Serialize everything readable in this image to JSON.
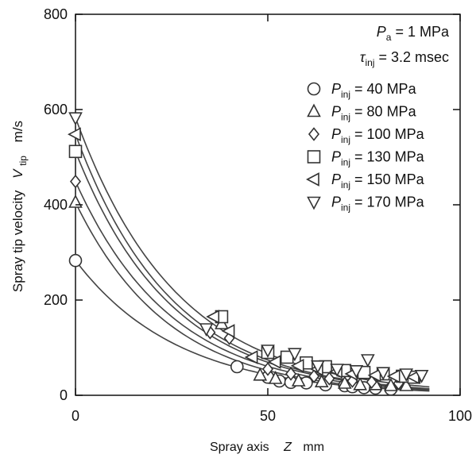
{
  "chart_data": {
    "type": "scatter",
    "title": "",
    "xlabel": {
      "text": "Spray axis",
      "var": "Z",
      "unit": "mm"
    },
    "ylabel": {
      "text": "Spray tip velocity",
      "var": "V",
      "sub": "tip",
      "unit": "m/s"
    },
    "xlim": [
      0,
      100
    ],
    "ylim": [
      0,
      800
    ],
    "xticks": [
      0,
      50,
      100
    ],
    "yticks": [
      0,
      200,
      400,
      600,
      800
    ],
    "grid": false,
    "conditions": [
      {
        "var": "P",
        "sub": "a",
        "value": "= 1 MPa"
      },
      {
        "var": "τ",
        "sub": "inj",
        "value": "= 3.2 msec"
      }
    ],
    "legend_position": "right",
    "series": [
      {
        "name": "40 MPa",
        "var": "P",
        "sub": "inj",
        "marker": "circle",
        "points": [
          [
            0,
            283
          ],
          [
            42,
            60
          ],
          [
            50,
            38
          ],
          [
            53,
            30
          ],
          [
            56,
            27
          ],
          [
            60,
            26
          ],
          [
            65,
            22
          ],
          [
            70,
            20
          ],
          [
            72,
            18
          ],
          [
            75,
            16
          ],
          [
            78,
            15
          ],
          [
            82,
            13
          ]
        ],
        "fit": {
          "a": 283,
          "b": 0.0375,
          "c": 0
        }
      },
      {
        "name": "80 MPa",
        "var": "P",
        "sub": "inj",
        "marker": "triangle-up",
        "points": [
          [
            0,
            405
          ],
          [
            38,
            150
          ],
          [
            48,
            42
          ],
          [
            52,
            35
          ],
          [
            58,
            30
          ],
          [
            64,
            28
          ],
          [
            70,
            25
          ],
          [
            74,
            22
          ],
          [
            78,
            22
          ],
          [
            82,
            20
          ],
          [
            86,
            20
          ]
        ],
        "fit": {
          "a": 405,
          "b": 0.041,
          "c": 0
        }
      },
      {
        "name": "100 MPa",
        "var": "P",
        "sub": "inj",
        "marker": "diamond",
        "points": [
          [
            0,
            449
          ],
          [
            35,
            132
          ],
          [
            40,
            120
          ],
          [
            50,
            55
          ],
          [
            56,
            45
          ],
          [
            62,
            40
          ],
          [
            66,
            35
          ],
          [
            72,
            30
          ],
          [
            77,
            28
          ],
          [
            84,
            25
          ]
        ],
        "fit": {
          "a": 449,
          "b": 0.04,
          "c": 0
        }
      },
      {
        "name": "130 MPa",
        "var": "P",
        "sub": "inj",
        "marker": "square",
        "points": [
          [
            0,
            512
          ],
          [
            38,
            165
          ],
          [
            50,
            90
          ],
          [
            55,
            80
          ],
          [
            60,
            68
          ],
          [
            65,
            60
          ],
          [
            70,
            52
          ],
          [
            75,
            48
          ],
          [
            80,
            45
          ],
          [
            85,
            40
          ],
          [
            88,
            38
          ]
        ],
        "fit": {
          "a": 512,
          "b": 0.04,
          "c": 0
        }
      },
      {
        "name": "150 MPa",
        "var": "P",
        "sub": "inj",
        "marker": "triangle-left",
        "points": [
          [
            0,
            548
          ],
          [
            36,
            165
          ],
          [
            40,
            135
          ],
          [
            46,
            80
          ],
          [
            52,
            70
          ],
          [
            58,
            62
          ],
          [
            63,
            55
          ],
          [
            68,
            50
          ],
          [
            72,
            45
          ],
          [
            78,
            42
          ],
          [
            83,
            40
          ],
          [
            88,
            38
          ]
        ],
        "fit": {
          "a": 548,
          "b": 0.04,
          "c": 0
        }
      },
      {
        "name": "170 MPa",
        "var": "P",
        "sub": "inj",
        "marker": "triangle-down",
        "points": [
          [
            0,
            583
          ],
          [
            34,
            140
          ],
          [
            50,
            95
          ],
          [
            57,
            88
          ],
          [
            63,
            62
          ],
          [
            68,
            55
          ],
          [
            73,
            52
          ],
          [
            76,
            75
          ],
          [
            80,
            48
          ],
          [
            86,
            45
          ],
          [
            90,
            42
          ]
        ],
        "fit": {
          "a": 583,
          "b": 0.038,
          "c": 0
        }
      }
    ]
  }
}
